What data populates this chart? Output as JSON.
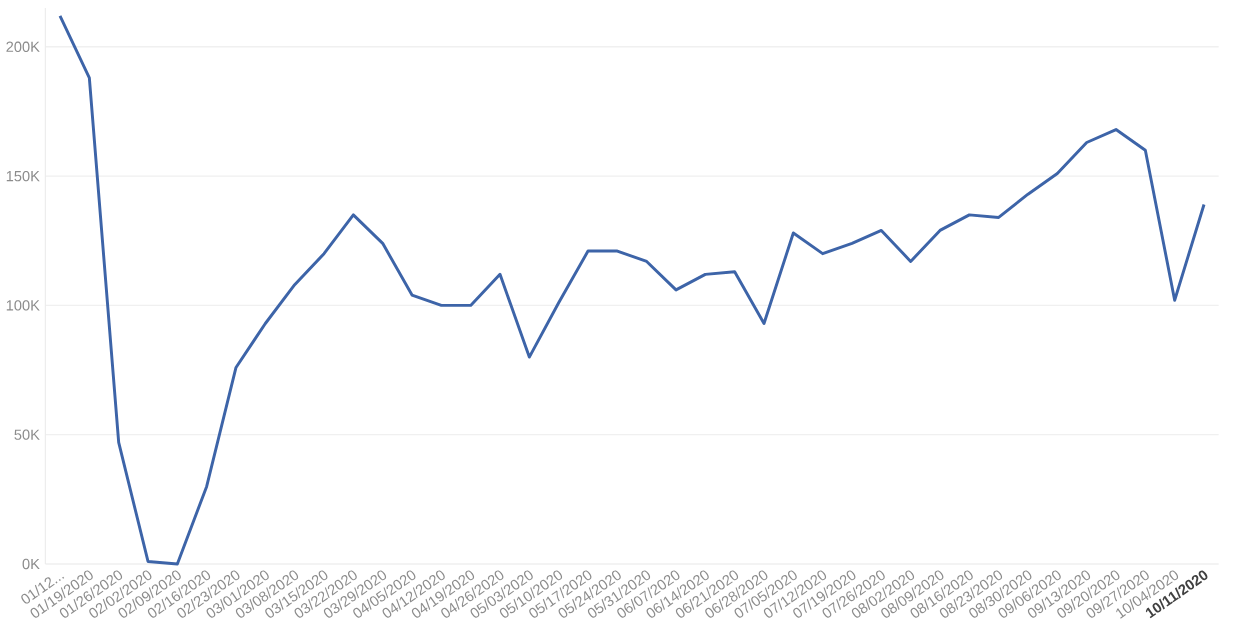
{
  "chart_data": {
    "type": "line",
    "categories": [
      "01/12...",
      "01/19/2020",
      "01/26/2020",
      "02/02/2020",
      "02/09/2020",
      "02/16/2020",
      "02/23/2020",
      "03/01/2020",
      "03/08/2020",
      "03/15/2020",
      "03/22/2020",
      "03/29/2020",
      "04/05/2020",
      "04/12/2020",
      "04/19/2020",
      "04/26/2020",
      "05/03/2020",
      "05/10/2020",
      "05/17/2020",
      "05/24/2020",
      "05/31/2020",
      "06/07/2020",
      "06/14/2020",
      "06/21/2020",
      "06/28/2020",
      "07/05/2020",
      "07/12/2020",
      "07/19/2020",
      "07/26/2020",
      "08/02/2020",
      "08/09/2020",
      "08/16/2020",
      "08/23/2020",
      "08/30/2020",
      "09/06/2020",
      "09/13/2020",
      "09/20/2020",
      "09/27/2020",
      "10/04/2020",
      "10/11/2020"
    ],
    "series": [
      {
        "color": "#3d64a8",
        "values": [
          212000,
          188000,
          47000,
          1000,
          0,
          30000,
          76000,
          93000,
          108000,
          120000,
          135000,
          124000,
          104000,
          100000,
          100000,
          112000,
          80000,
          101000,
          121000,
          121000,
          117000,
          106000,
          112000,
          113000,
          93000,
          128000,
          120000,
          124000,
          129000,
          117000,
          129000,
          135000,
          134000,
          143000,
          151000,
          163000,
          168000,
          160000,
          102000,
          139000
        ]
      }
    ],
    "yticks": [
      {
        "value": 0,
        "label": "0K"
      },
      {
        "value": 50000,
        "label": "50K"
      },
      {
        "value": 100000,
        "label": "100K"
      },
      {
        "value": 150000,
        "label": "150K"
      },
      {
        "value": 200000,
        "label": "200K"
      }
    ],
    "ylim": [
      0,
      215000
    ],
    "grid": "y",
    "marker": "none",
    "line_style": "solid"
  }
}
